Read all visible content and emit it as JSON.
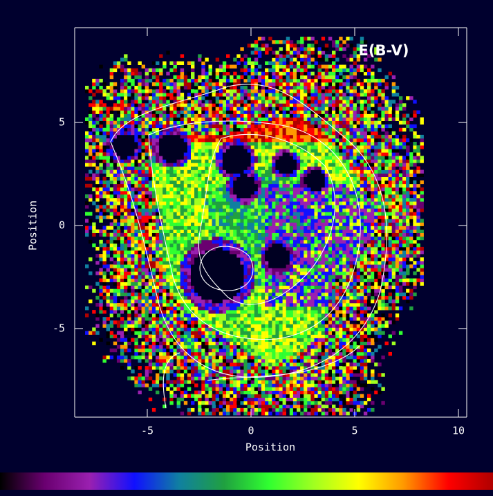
{
  "chart_data": {
    "type": "image",
    "title": "E(B-V)",
    "x_label": "Position",
    "y_label": "Position",
    "xlim": [
      -8.5,
      10.4
    ],
    "ylim": [
      -9.3,
      9.6
    ],
    "xticks": [
      -5,
      0,
      5,
      10
    ],
    "yticks": [
      -5,
      0,
      5
    ],
    "background": "#00002e",
    "axis_color": "#ffffff",
    "colormap": [
      "#000000",
      "#6a0070",
      "#9a20b0",
      "#1010ff",
      "#1080a0",
      "#20a040",
      "#30ff30",
      "#a0ff20",
      "#ffff00",
      "#ff9900",
      "#ff0000",
      "#b00000"
    ]
  }
}
